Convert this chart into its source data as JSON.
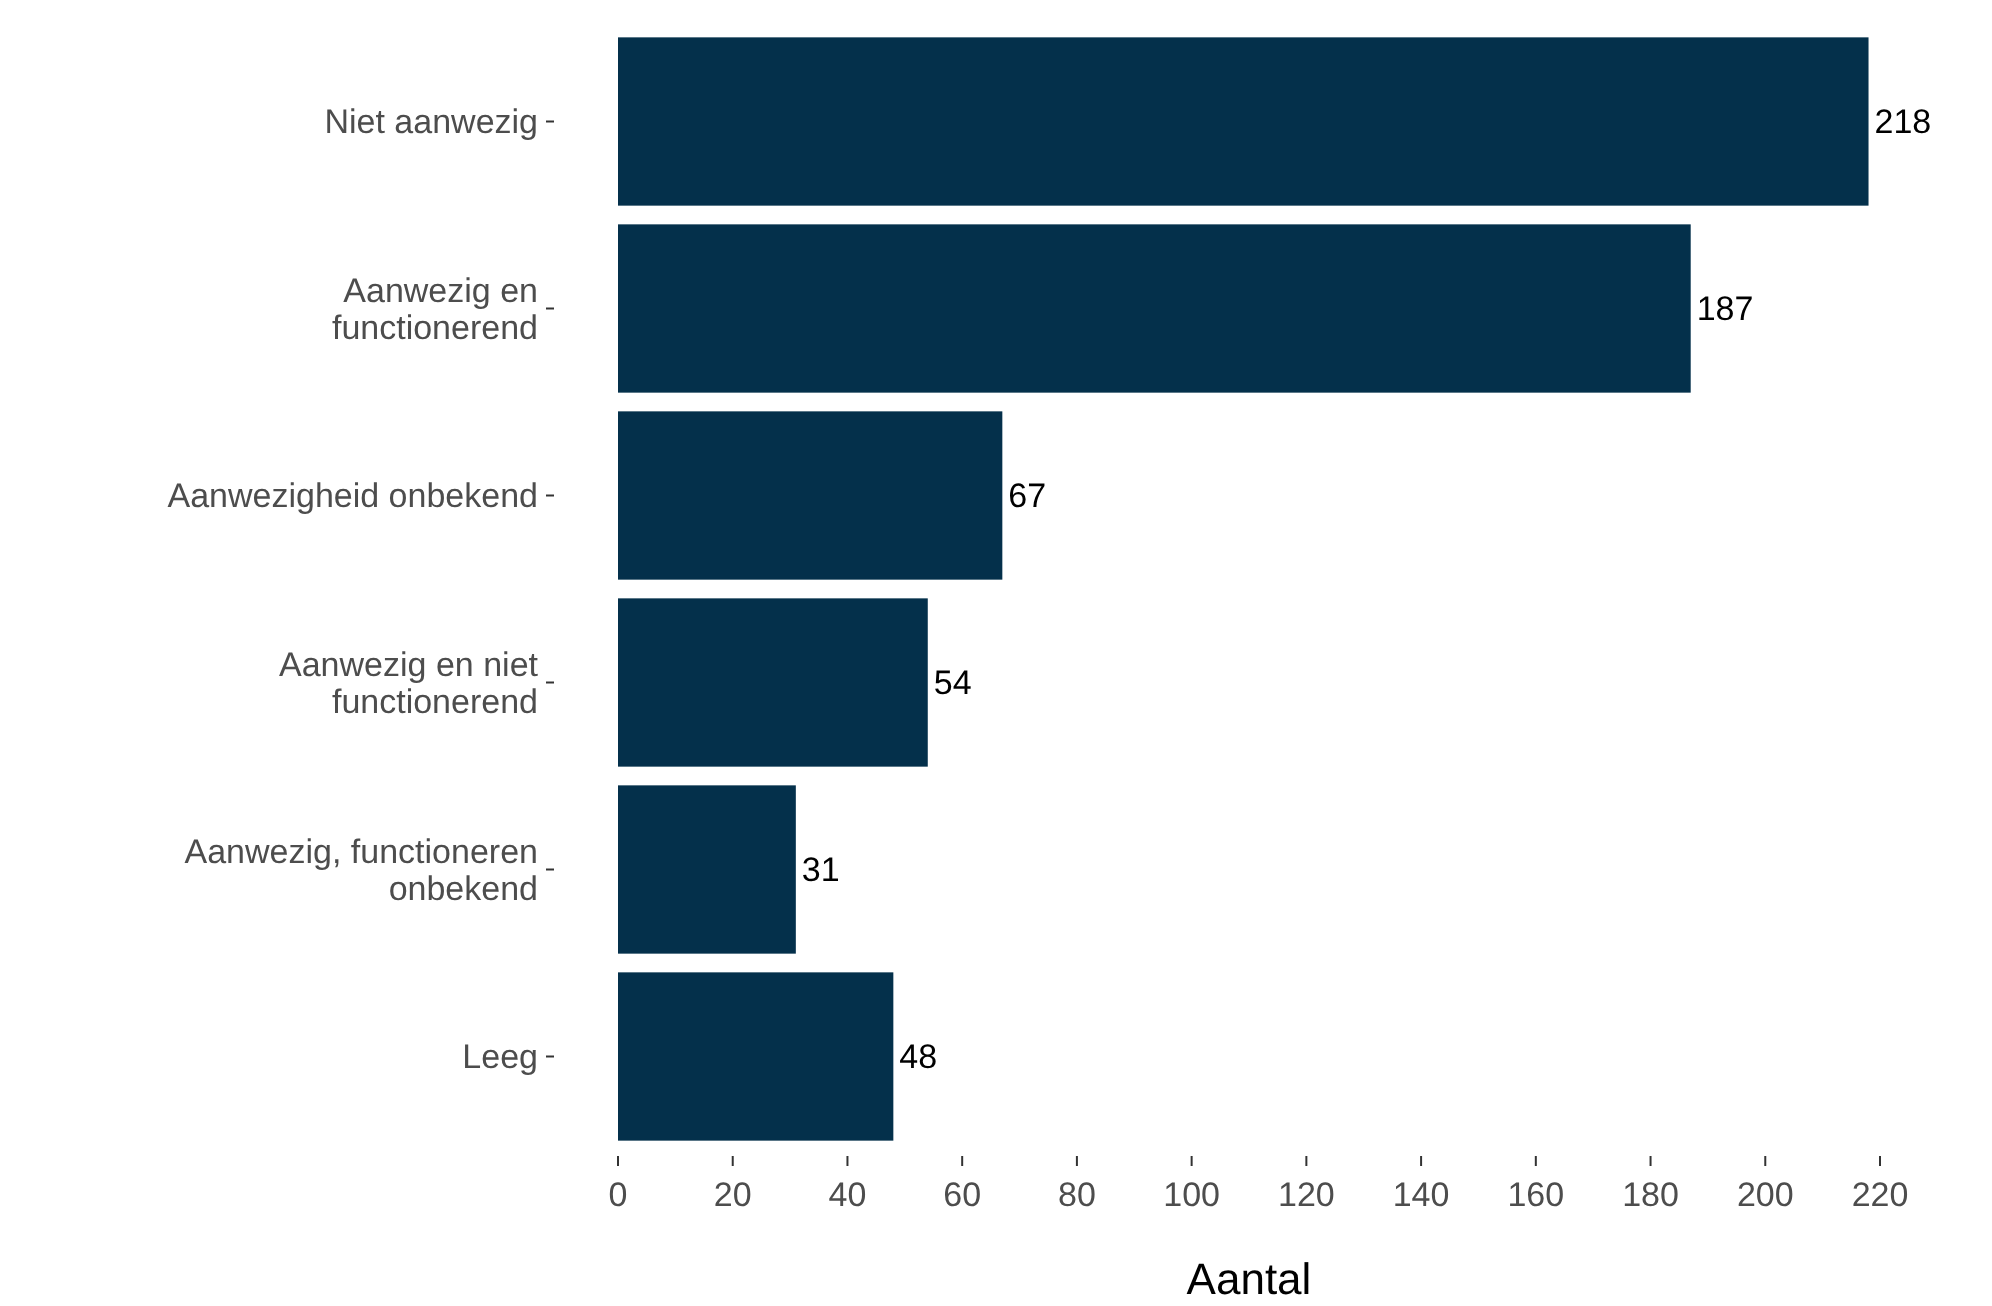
{
  "chart_data": {
    "type": "bar",
    "orientation": "horizontal",
    "xlabel": "Aantal",
    "categories": [
      "Niet aanwezig",
      "Aanwezig en\nfunctionerend",
      "Aanwezigheid onbekend",
      "Aanwezig en niet\nfunctionerend",
      "Aanwezig, functioneren\nonbekend",
      "Leeg"
    ],
    "values": [
      218,
      187,
      67,
      54,
      31,
      48
    ],
    "color": "#04304b",
    "data_labels": true,
    "xlim": [
      0,
      220
    ],
    "xticks": [
      0,
      20,
      40,
      60,
      80,
      100,
      120,
      140,
      160,
      180,
      200,
      220
    ],
    "grid": false
  }
}
